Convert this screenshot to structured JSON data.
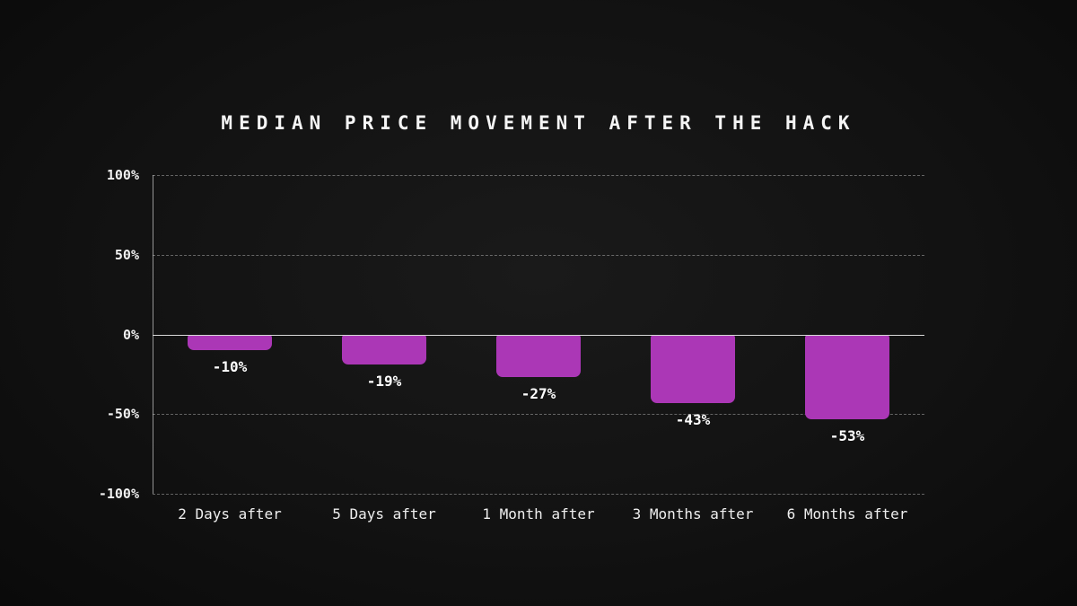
{
  "chart_data": {
    "type": "bar",
    "title": "MEDIAN PRICE MOVEMENT AFTER THE HACK",
    "categories": [
      "2 Days after",
      "5 Days after",
      "1 Month after",
      "3 Months after",
      "6 Months after"
    ],
    "values": [
      -10,
      -19,
      -27,
      -43,
      -53
    ],
    "value_labels": [
      "-10%",
      "-19%",
      "-27%",
      "-43%",
      "-53%"
    ],
    "xlabel": "",
    "ylabel": "",
    "ylim": [
      -100,
      100
    ],
    "yticks": [
      100,
      50,
      0,
      -50,
      -100
    ],
    "ytick_labels": [
      "100%",
      "50%",
      "0%",
      "-50%",
      "-100%"
    ],
    "grid": "horizontal-dashed",
    "legend": "none",
    "bar_color": "#ab37b6",
    "background_color": "#121212",
    "text_color": "#ffffff",
    "zero_line_color": "#d8d8d8"
  }
}
